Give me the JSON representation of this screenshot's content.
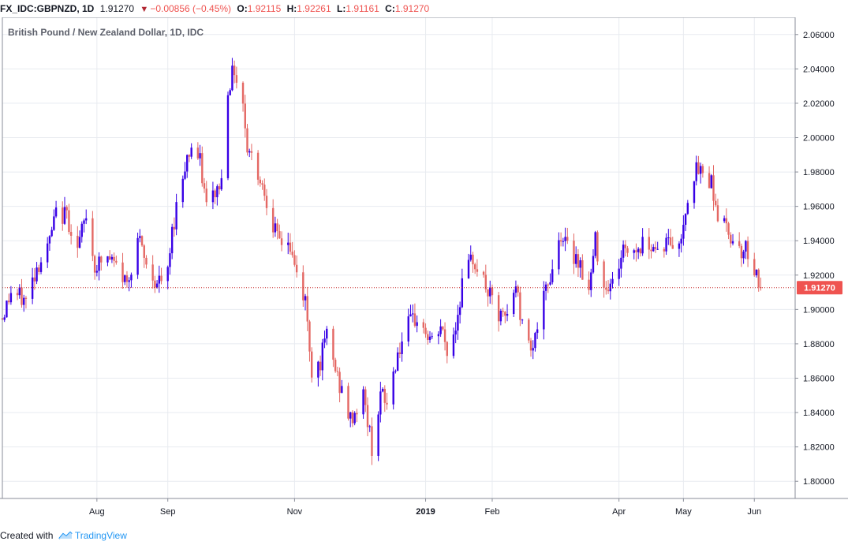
{
  "header": {
    "symbol": "FX_IDC:GBPNZD, 1D",
    "last": "1.91270",
    "change_arrow": "▼",
    "change": "−0.00856 (−0.45%)",
    "open_label": "O:",
    "open": "1.92115",
    "high_label": "H:",
    "high": "1.92261",
    "low_label": "L:",
    "low": "1.91161",
    "close_label": "C:",
    "close": "1.91270"
  },
  "footer": {
    "created_with": "Created with",
    "brand": "TradingView"
  },
  "colors": {
    "up": "#3700e6",
    "down": "#e46864",
    "grid": "#e8ebf0",
    "price_line": "#c62828",
    "price_label_bg": "#ef5350",
    "brand": "#2196f3"
  },
  "chart_data": {
    "type": "candlestick",
    "title": "British Pound / New Zealand Dollar, 1D, IDC",
    "ylim": [
      1.79,
      2.07
    ],
    "y_ticks": [
      "1.80000",
      "1.82000",
      "1.84000",
      "1.86000",
      "1.88000",
      "1.90000",
      "1.92000",
      "1.94000",
      "1.96000",
      "1.98000",
      "2.00000",
      "2.02000",
      "2.04000",
      "2.06000"
    ],
    "x_ticks": [
      {
        "label": "Aug",
        "date": "2018-08-01",
        "bold": false
      },
      {
        "label": "Sep",
        "date": "2018-09-03",
        "bold": false
      },
      {
        "label": "Nov",
        "date": "2018-11-01",
        "bold": false
      },
      {
        "label": "2019",
        "date": "2019-01-01",
        "bold": true
      },
      {
        "label": "Feb",
        "date": "2019-02-01",
        "bold": false
      },
      {
        "label": "Apr",
        "date": "2019-04-01",
        "bold": false
      },
      {
        "label": "May",
        "date": "2019-05-01",
        "bold": false
      },
      {
        "label": "Jun",
        "date": "2019-06-03",
        "bold": false
      }
    ],
    "date_range": [
      "2018-06-18",
      "2019-06-22"
    ],
    "last_price": 1.9127,
    "last_price_label": "1.91270",
    "anchors": [
      [
        "2018-06-18",
        1.895
      ],
      [
        "2018-06-22",
        1.91
      ],
      [
        "2018-06-29",
        1.905
      ],
      [
        "2018-07-04",
        1.925
      ],
      [
        "2018-07-09",
        1.935
      ],
      [
        "2018-07-13",
        1.955
      ],
      [
        "2018-07-18",
        1.955
      ],
      [
        "2018-07-23",
        1.935
      ],
      [
        "2018-07-27",
        1.955
      ],
      [
        "2018-07-31",
        1.925
      ],
      [
        "2018-08-06",
        1.93
      ],
      [
        "2018-08-10",
        1.925
      ],
      [
        "2018-08-15",
        1.915
      ],
      [
        "2018-08-20",
        1.942
      ],
      [
        "2018-08-24",
        1.925
      ],
      [
        "2018-08-29",
        1.915
      ],
      [
        "2018-09-03",
        1.92
      ],
      [
        "2018-09-05",
        1.945
      ],
      [
        "2018-09-07",
        1.96
      ],
      [
        "2018-09-11",
        1.985
      ],
      [
        "2018-09-14",
        1.995
      ],
      [
        "2018-09-18",
        1.985
      ],
      [
        "2018-09-21",
        1.96
      ],
      [
        "2018-09-26",
        1.97
      ],
      [
        "2018-09-28",
        1.975
      ],
      [
        "2018-10-01",
        2.03
      ],
      [
        "2018-10-04",
        2.04
      ],
      [
        "2018-10-08",
        2.02
      ],
      [
        "2018-10-10",
        1.995
      ],
      [
        "2018-10-15",
        1.98
      ],
      [
        "2018-10-19",
        1.965
      ],
      [
        "2018-10-24",
        1.94
      ],
      [
        "2018-10-29",
        1.94
      ],
      [
        "2018-11-02",
        1.92
      ],
      [
        "2018-11-06",
        1.905
      ],
      [
        "2018-11-09",
        1.865
      ],
      [
        "2018-11-13",
        1.87
      ],
      [
        "2018-11-16",
        1.885
      ],
      [
        "2018-11-21",
        1.86
      ],
      [
        "2018-11-27",
        1.835
      ],
      [
        "2018-12-03",
        1.85
      ],
      [
        "2018-12-07",
        1.82
      ],
      [
        "2018-12-11",
        1.85
      ],
      [
        "2018-12-14",
        1.845
      ],
      [
        "2018-12-19",
        1.875
      ],
      [
        "2018-12-24",
        1.89
      ],
      [
        "2018-12-28",
        1.895
      ],
      [
        "2019-01-04",
        1.88
      ],
      [
        "2019-01-08",
        1.89
      ],
      [
        "2019-01-11",
        1.875
      ],
      [
        "2019-01-15",
        1.89
      ],
      [
        "2019-01-18",
        1.915
      ],
      [
        "2019-01-23",
        1.93
      ],
      [
        "2019-01-25",
        1.925
      ],
      [
        "2019-01-30",
        1.91
      ],
      [
        "2019-02-04",
        1.895
      ],
      [
        "2019-02-08",
        1.895
      ],
      [
        "2019-02-12",
        1.915
      ],
      [
        "2019-02-15",
        1.89
      ],
      [
        "2019-02-20",
        1.88
      ],
      [
        "2019-02-25",
        1.905
      ],
      [
        "2019-03-01",
        1.925
      ],
      [
        "2019-03-05",
        1.945
      ],
      [
        "2019-03-08",
        1.935
      ],
      [
        "2019-03-13",
        1.93
      ],
      [
        "2019-03-18",
        1.91
      ],
      [
        "2019-03-21",
        1.94
      ],
      [
        "2019-03-25",
        1.915
      ],
      [
        "2019-03-29",
        1.915
      ],
      [
        "2019-04-03",
        1.935
      ],
      [
        "2019-04-09",
        1.935
      ],
      [
        "2019-04-15",
        1.94
      ],
      [
        "2019-04-19",
        1.935
      ],
      [
        "2019-04-24",
        1.94
      ],
      [
        "2019-04-29",
        1.935
      ],
      [
        "2019-05-02",
        1.96
      ],
      [
        "2019-05-06",
        1.98
      ],
      [
        "2019-05-09",
        1.98
      ],
      [
        "2019-05-14",
        1.975
      ],
      [
        "2019-05-17",
        1.955
      ],
      [
        "2019-05-22",
        1.945
      ],
      [
        "2019-05-28",
        1.935
      ],
      [
        "2019-05-31",
        1.935
      ],
      [
        "2019-06-04",
        1.92
      ],
      [
        "2019-06-06",
        1.9127
      ]
    ],
    "note": ""
  }
}
